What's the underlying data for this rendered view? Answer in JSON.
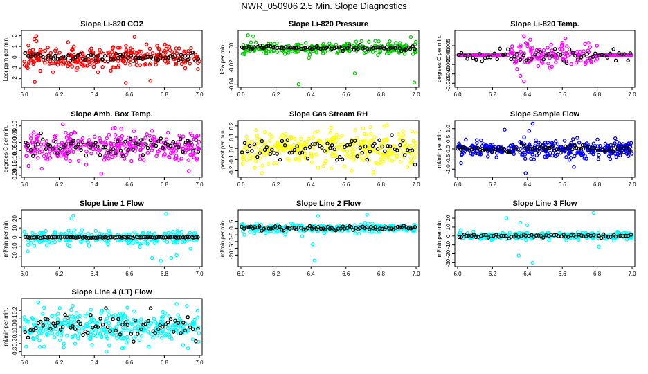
{
  "title": "NWR_050906  2.5 Min. Slope Diagnostics",
  "colors": {
    "red": "#ff0000",
    "green": "#00cc00",
    "magenta": "#ff00ff",
    "yellow": "#ffff00",
    "blue": "#0000ff",
    "cyan": "#00ffff",
    "black": "#000000"
  },
  "chart_data": [
    {
      "type": "scatter",
      "title": "Slope Li-820 CO2",
      "ylabel": "Lcor ppm per min.",
      "xlim": [
        6.0,
        7.0
      ],
      "ylim": [
        -2.6,
        2.3
      ],
      "xticks": [
        "6.0",
        "6.2",
        "6.4",
        "6.6",
        "6.8",
        "7.0"
      ],
      "yticks": [
        "-2",
        "-1",
        "0",
        "1",
        "2"
      ],
      "ytick_values": [
        -2,
        -1,
        0,
        1,
        2
      ],
      "color": "red",
      "center": 0,
      "spread": 0.55,
      "black_spread": 0.2,
      "n": 300,
      "n_black": 70,
      "seed": 11,
      "regions": null,
      "outliers": [
        [
          6.06,
          -2.3
        ],
        [
          6.72,
          -2.2
        ],
        [
          6.58,
          -2.4
        ],
        [
          6.63,
          1.9
        ],
        [
          6.07,
          1.5
        ],
        [
          6.25,
          1.4
        ]
      ]
    },
    {
      "type": "scatter",
      "title": "Slope Li-820 Pressure",
      "ylabel": "kPa per min.",
      "xlim": [
        6.0,
        7.0
      ],
      "ylim": [
        -0.041,
        0.017
      ],
      "xticks": [
        "6.0",
        "6.2",
        "6.4",
        "6.6",
        "6.8",
        "7.0"
      ],
      "yticks": [
        "-0.04",
        "-0.02",
        "0.00"
      ],
      "ytick_values": [
        -0.04,
        -0.02,
        0.0
      ],
      "color": "green",
      "center": 0.0,
      "spread": 0.003,
      "black_spread": 0.0012,
      "n": 250,
      "n_black": 80,
      "seed": 23,
      "regions": null,
      "outliers": [
        [
          6.33,
          -0.04
        ],
        [
          6.65,
          -0.028
        ],
        [
          6.99,
          -0.038
        ],
        [
          6.02,
          -0.007
        ],
        [
          6.04,
          0.014
        ],
        [
          6.07,
          0.013
        ],
        [
          6.97,
          0.012
        ]
      ]
    },
    {
      "type": "scatter",
      "title": "Slope Li-820 Temp.",
      "ylabel": "degrees C per min.",
      "xlim": [
        6.0,
        7.0
      ],
      "ylim": [
        -0.016,
        0.012
      ],
      "xticks": [
        "6.0",
        "6.2",
        "6.4",
        "6.6",
        "6.8",
        "7.0"
      ],
      "yticks": [
        "-0.015",
        "-0.010",
        "-0.005",
        "0.000",
        "0.005"
      ],
      "ytick_values": [
        -0.015,
        -0.01,
        -0.005,
        0.0,
        0.005
      ],
      "color": "magenta",
      "center": 0,
      "spread": 0.003,
      "black_spread": 0.0015,
      "n": 260,
      "n_black": 60,
      "seed": 31,
      "regions": [
        [
          0.3,
          0.8
        ]
      ],
      "outliers": [
        [
          6.38,
          -0.014
        ],
        [
          6.38,
          0.01
        ],
        [
          6.73,
          0.006
        ],
        [
          6.36,
          -0.011
        ],
        [
          6.4,
          0.006
        ]
      ]
    },
    {
      "type": "scatter",
      "title": "Slope Amb. Box Temp.",
      "ylabel": "degrees C per min.",
      "xlim": [
        6.0,
        7.0
      ],
      "ylim": [
        -0.2,
        0.12
      ],
      "xticks": [
        "6.0",
        "6.2",
        "6.4",
        "6.6",
        "6.8",
        "7.0"
      ],
      "yticks": [
        "-0.20",
        "-0.15",
        "-0.10",
        "-0.05",
        "0.00",
        "0.05",
        "0.10"
      ],
      "ytick_values": [
        -0.2,
        -0.15,
        -0.1,
        -0.05,
        0.0,
        0.05,
        0.1
      ],
      "color": "magenta",
      "center": -0.03,
      "spread": 0.045,
      "black_spread": 0.03,
      "n": 330,
      "n_black": 70,
      "seed": 41,
      "regions": null,
      "outliers": [
        [
          6.44,
          -0.19
        ],
        [
          6.22,
          0.11
        ],
        [
          6.1,
          -0.16
        ]
      ]
    },
    {
      "type": "scatter",
      "title": "Slope Gas Stream RH",
      "ylabel": "percent per min.",
      "xlim": [
        6.0,
        7.0
      ],
      "ylim": [
        -0.24,
        0.23
      ],
      "xticks": [
        "6.0",
        "6.2",
        "6.4",
        "6.6",
        "6.8",
        "7.0"
      ],
      "yticks": [
        "-0.2",
        "-0.1",
        "0.0",
        "0.1",
        "0.2"
      ],
      "ytick_values": [
        -0.2,
        -0.1,
        0.0,
        0.1,
        0.2
      ],
      "color": "yellow",
      "center": 0,
      "spread": 0.075,
      "black_spread": 0.055,
      "n": 330,
      "n_black": 70,
      "seed": 53,
      "regions": null,
      "outliers": [
        [
          6.12,
          -0.22
        ],
        [
          6.82,
          0.2
        ],
        [
          6.74,
          0.19
        ]
      ]
    },
    {
      "type": "scatter",
      "title": "Slope Sample Flow",
      "ylabel": "ml/min per min.",
      "xlim": [
        6.0,
        7.0
      ],
      "ylim": [
        -1.3,
        1.3
      ],
      "xticks": [
        "6.0",
        "6.2",
        "6.4",
        "6.6",
        "6.8",
        "7.0"
      ],
      "yticks": [
        "-1.0",
        "-0.5",
        "0.0",
        "0.5",
        "1.0"
      ],
      "ytick_values": [
        -1.0,
        -0.5,
        0.0,
        0.5,
        1.0
      ],
      "color": "blue",
      "center": 0,
      "spread": 0.22,
      "black_spread": 0.1,
      "n": 320,
      "n_black": 80,
      "seed": 61,
      "regions": null,
      "outliers": [
        [
          6.43,
          1.25
        ],
        [
          6.39,
          -1.2
        ],
        [
          6.27,
          0.95
        ],
        [
          6.41,
          0.9
        ],
        [
          6.02,
          -0.7
        ]
      ]
    },
    {
      "type": "scatter",
      "title": "Slope Line 1 Flow",
      "ylabel": "ml/min per min.",
      "xlim": [
        6.0,
        7.0
      ],
      "ylim": [
        -29,
        27
      ],
      "xticks": [
        "6.0",
        "6.2",
        "6.4",
        "6.6",
        "6.8",
        "7.0"
      ],
      "yticks": [
        "-20",
        "-10",
        "0",
        "10",
        "20"
      ],
      "ytick_values": [
        -20,
        -10,
        0,
        10,
        20
      ],
      "color": "cyan",
      "center": 0,
      "spread": 3.5,
      "black_spread": 0.3,
      "n": 260,
      "n_black": 80,
      "seed": 71,
      "regions": null,
      "outliers": [
        [
          6.28,
          23
        ],
        [
          6.27,
          20
        ],
        [
          6.81,
          25
        ],
        [
          6.73,
          -22
        ],
        [
          6.78,
          -25
        ],
        [
          6.84,
          -22
        ],
        [
          6.87,
          -19
        ],
        [
          6.02,
          -15
        ],
        [
          6.95,
          -12
        ],
        [
          6.66,
          -10
        ],
        [
          6.33,
          8
        ]
      ]
    },
    {
      "type": "scatter",
      "title": "Slope Line 2 Flow",
      "ylabel": "ml/min per min.",
      "xlim": [
        6.0,
        7.0
      ],
      "ylim": [
        -27,
        12
      ],
      "xticks": [
        "6.0",
        "6.2",
        "6.4",
        "6.6",
        "6.8",
        "7.0"
      ],
      "yticks": [
        "-20",
        "-15",
        "-10",
        "-5",
        "0",
        "5"
      ],
      "ytick_values": [
        -20,
        -15,
        -10,
        -5,
        0,
        5
      ],
      "color": "cyan",
      "center": 0,
      "spread": 1.4,
      "black_spread": 0.9,
      "n": 280,
      "n_black": 80,
      "seed": 83,
      "regions": null,
      "outliers": [
        [
          6.42,
          -24
        ],
        [
          6.41,
          -12
        ],
        [
          6.44,
          9
        ],
        [
          6.72,
          10
        ],
        [
          6.01,
          3
        ],
        [
          6.02,
          -5
        ],
        [
          6.35,
          -6
        ]
      ]
    },
    {
      "type": "scatter",
      "title": "Slope Line 3 Flow",
      "ylabel": "ml/min per min.",
      "xlim": [
        6.0,
        7.0
      ],
      "ylim": [
        -32,
        27
      ],
      "xticks": [
        "6.0",
        "6.2",
        "6.4",
        "6.6",
        "6.8",
        "7.0"
      ],
      "yticks": [
        "-30",
        "-20",
        "-10",
        "0",
        "10",
        "20"
      ],
      "ytick_values": [
        -30,
        -20,
        -10,
        0,
        10,
        20
      ],
      "color": "cyan",
      "center": 0,
      "spread": 2.2,
      "black_spread": 1.0,
      "n": 260,
      "n_black": 70,
      "seed": 97,
      "regions": null,
      "outliers": [
        [
          6.28,
          20
        ],
        [
          6.36,
          15
        ],
        [
          6.43,
          -30
        ],
        [
          6.35,
          -22
        ],
        [
          6.78,
          26
        ],
        [
          6.81,
          -12
        ],
        [
          6.4,
          12
        ]
      ]
    },
    {
      "type": "scatter",
      "title": "Slope Line 4 (LT) Flow",
      "ylabel": "ml/min per min.",
      "xlim": [
        6.0,
        7.0
      ],
      "ylim": [
        -0.32,
        0.32
      ],
      "xticks": [
        "6.0",
        "6.2",
        "6.4",
        "6.6",
        "6.8",
        "7.0"
      ],
      "yticks": [
        "-0.3",
        "-0.2",
        "-0.1",
        "0.0",
        "0.1",
        "0.2"
      ],
      "ytick_values": [
        -0.3,
        -0.2,
        -0.1,
        0.0,
        0.1,
        0.2
      ],
      "color": "cyan",
      "center": 0,
      "spread": 0.1,
      "black_spread": 0.08,
      "n": 340,
      "n_black": 70,
      "seed": 101,
      "regions": null,
      "outliers": [
        [
          6.87,
          0.28
        ],
        [
          6.08,
          0.3
        ],
        [
          6.47,
          -0.3
        ],
        [
          6.99,
          0.2
        ]
      ]
    }
  ]
}
